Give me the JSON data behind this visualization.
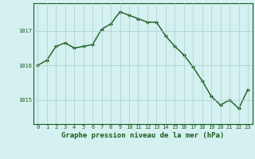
{
  "x": [
    0,
    1,
    2,
    3,
    4,
    5,
    6,
    7,
    8,
    9,
    10,
    11,
    12,
    13,
    14,
    15,
    16,
    17,
    18,
    19,
    20,
    21,
    22,
    23
  ],
  "y": [
    1016.0,
    1016.15,
    1016.55,
    1016.65,
    1016.5,
    1016.55,
    1016.6,
    1017.05,
    1017.2,
    1017.55,
    1017.45,
    1017.35,
    1017.25,
    1017.25,
    1016.85,
    1016.55,
    1016.3,
    1015.95,
    1015.55,
    1015.1,
    1014.85,
    1015.0,
    1014.75,
    1015.3
  ],
  "line_color": "#1a5c1a",
  "marker": "D",
  "marker_size": 2,
  "bg_color": "#d4f0f0",
  "grid_color": "#a8cece",
  "xlabel": "Graphe pression niveau de la mer (hPa)",
  "xlabel_fontsize": 6.5,
  "yticks": [
    1015,
    1016,
    1017
  ],
  "xticks": [
    0,
    1,
    2,
    3,
    4,
    5,
    6,
    7,
    8,
    9,
    10,
    11,
    12,
    13,
    14,
    15,
    16,
    17,
    18,
    19,
    20,
    21,
    22,
    23
  ],
  "ylim": [
    1014.3,
    1017.8
  ],
  "xlim": [
    -0.5,
    23.5
  ],
  "tick_color": "#1a5c1a",
  "tick_fontsize": 5,
  "spine_color": "#1a5c1a",
  "linewidth": 1.0
}
